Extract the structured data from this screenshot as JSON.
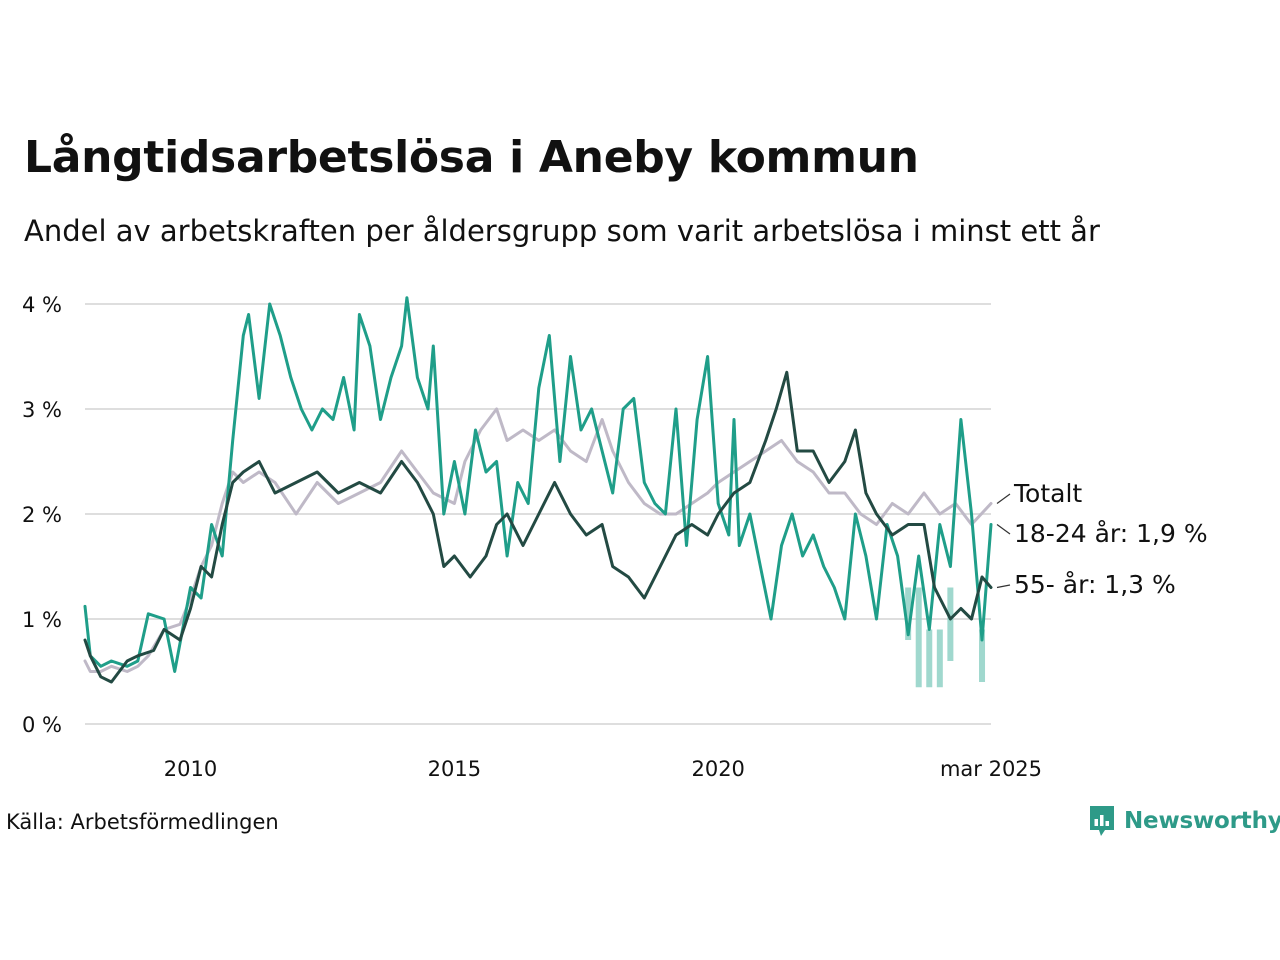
{
  "title": "Långtidsarbetslösa i Aneby kommun",
  "subtitle": "Andel av arbetskraften per åldersgrupp som varit arbetslösa i minst ett år",
  "source": "Källa: Arbetsförmedlingen",
  "brand": "Newsworthy",
  "colors": {
    "total": "#bfb9c7",
    "age_18_24": "#1f9e89",
    "age_55": "#234a43",
    "band": "#8fd1c5",
    "grid": "#dedede",
    "brand": "#2e9a88"
  },
  "chart_data": {
    "type": "line",
    "x_ticks": [
      {
        "x": 2010,
        "label": "2010"
      },
      {
        "x": 2015,
        "label": "2015"
      },
      {
        "x": 2020,
        "label": "2020"
      },
      {
        "x": 2025.17,
        "label": "mar 2025"
      }
    ],
    "y_ticks": [
      {
        "y": 0,
        "label": "0 %"
      },
      {
        "y": 1,
        "label": "1 %"
      },
      {
        "y": 2,
        "label": "2 %"
      },
      {
        "y": 3,
        "label": "3 %"
      },
      {
        "y": 4,
        "label": "4 %"
      }
    ],
    "xlim": [
      2008.0,
      2025.17
    ],
    "ylim": [
      0,
      4
    ],
    "grid": true,
    "xlabel": "",
    "ylabel": "",
    "series": [
      {
        "key": "total",
        "end_label": "Totalt",
        "points": [
          [
            2008.0,
            0.6
          ],
          [
            2008.1,
            0.5
          ],
          [
            2008.3,
            0.5
          ],
          [
            2008.5,
            0.55
          ],
          [
            2008.8,
            0.5
          ],
          [
            2009.0,
            0.55
          ],
          [
            2009.2,
            0.65
          ],
          [
            2009.5,
            0.9
          ],
          [
            2009.8,
            0.95
          ],
          [
            2010.0,
            1.2
          ],
          [
            2010.2,
            1.5
          ],
          [
            2010.4,
            1.7
          ],
          [
            2010.6,
            2.1
          ],
          [
            2010.8,
            2.4
          ],
          [
            2011.0,
            2.3
          ],
          [
            2011.3,
            2.4
          ],
          [
            2011.6,
            2.3
          ],
          [
            2012.0,
            2.0
          ],
          [
            2012.4,
            2.3
          ],
          [
            2012.8,
            2.1
          ],
          [
            2013.2,
            2.2
          ],
          [
            2013.6,
            2.3
          ],
          [
            2014.0,
            2.6
          ],
          [
            2014.3,
            2.4
          ],
          [
            2014.6,
            2.2
          ],
          [
            2015.0,
            2.1
          ],
          [
            2015.2,
            2.5
          ],
          [
            2015.5,
            2.8
          ],
          [
            2015.8,
            3.0
          ],
          [
            2016.0,
            2.7
          ],
          [
            2016.3,
            2.8
          ],
          [
            2016.6,
            2.7
          ],
          [
            2016.9,
            2.8
          ],
          [
            2017.2,
            2.6
          ],
          [
            2017.5,
            2.5
          ],
          [
            2017.8,
            2.9
          ],
          [
            2018.0,
            2.6
          ],
          [
            2018.3,
            2.3
          ],
          [
            2018.6,
            2.1
          ],
          [
            2018.9,
            2.0
          ],
          [
            2019.2,
            2.0
          ],
          [
            2019.5,
            2.1
          ],
          [
            2019.8,
            2.2
          ],
          [
            2020.0,
            2.3
          ],
          [
            2020.3,
            2.4
          ],
          [
            2020.6,
            2.5
          ],
          [
            2020.9,
            2.6
          ],
          [
            2021.2,
            2.7
          ],
          [
            2021.5,
            2.5
          ],
          [
            2021.8,
            2.4
          ],
          [
            2022.1,
            2.2
          ],
          [
            2022.4,
            2.2
          ],
          [
            2022.7,
            2.0
          ],
          [
            2023.0,
            1.9
          ],
          [
            2023.3,
            2.1
          ],
          [
            2023.6,
            2.0
          ],
          [
            2023.9,
            2.2
          ],
          [
            2024.2,
            2.0
          ],
          [
            2024.5,
            2.1
          ],
          [
            2024.8,
            1.9
          ],
          [
            2025.17,
            2.1
          ]
        ]
      },
      {
        "key": "age_18_24",
        "end_label": "18-24 år: 1,9 %",
        "points": [
          [
            2008.0,
            1.12
          ],
          [
            2008.1,
            0.65
          ],
          [
            2008.3,
            0.55
          ],
          [
            2008.5,
            0.6
          ],
          [
            2008.8,
            0.55
          ],
          [
            2009.0,
            0.6
          ],
          [
            2009.2,
            1.05
          ],
          [
            2009.5,
            1.0
          ],
          [
            2009.7,
            0.5
          ],
          [
            2010.0,
            1.3
          ],
          [
            2010.2,
            1.2
          ],
          [
            2010.4,
            1.9
          ],
          [
            2010.6,
            1.6
          ],
          [
            2010.8,
            2.7
          ],
          [
            2011.0,
            3.7
          ],
          [
            2011.1,
            3.9
          ],
          [
            2011.3,
            3.1
          ],
          [
            2011.5,
            4.0
          ],
          [
            2011.7,
            3.7
          ],
          [
            2011.9,
            3.3
          ],
          [
            2012.1,
            3.0
          ],
          [
            2012.3,
            2.8
          ],
          [
            2012.5,
            3.0
          ],
          [
            2012.7,
            2.9
          ],
          [
            2012.9,
            3.3
          ],
          [
            2013.1,
            2.8
          ],
          [
            2013.2,
            3.9
          ],
          [
            2013.4,
            3.6
          ],
          [
            2013.6,
            2.9
          ],
          [
            2013.8,
            3.3
          ],
          [
            2014.0,
            3.6
          ],
          [
            2014.1,
            4.06
          ],
          [
            2014.3,
            3.3
          ],
          [
            2014.5,
            3.0
          ],
          [
            2014.6,
            3.6
          ],
          [
            2014.8,
            2.0
          ],
          [
            2015.0,
            2.5
          ],
          [
            2015.2,
            2.0
          ],
          [
            2015.4,
            2.8
          ],
          [
            2015.6,
            2.4
          ],
          [
            2015.8,
            2.5
          ],
          [
            2016.0,
            1.6
          ],
          [
            2016.2,
            2.3
          ],
          [
            2016.4,
            2.1
          ],
          [
            2016.6,
            3.2
          ],
          [
            2016.8,
            3.7
          ],
          [
            2017.0,
            2.5
          ],
          [
            2017.2,
            3.5
          ],
          [
            2017.4,
            2.8
          ],
          [
            2017.6,
            3.0
          ],
          [
            2017.8,
            2.6
          ],
          [
            2018.0,
            2.2
          ],
          [
            2018.2,
            3.0
          ],
          [
            2018.4,
            3.1
          ],
          [
            2018.6,
            2.3
          ],
          [
            2018.8,
            2.1
          ],
          [
            2019.0,
            2.0
          ],
          [
            2019.2,
            3.0
          ],
          [
            2019.4,
            1.7
          ],
          [
            2019.6,
            2.9
          ],
          [
            2019.8,
            3.5
          ],
          [
            2020.0,
            2.1
          ],
          [
            2020.2,
            1.8
          ],
          [
            2020.3,
            2.9
          ],
          [
            2020.4,
            1.7
          ],
          [
            2020.6,
            2.0
          ],
          [
            2020.8,
            1.5
          ],
          [
            2021.0,
            1.0
          ],
          [
            2021.2,
            1.7
          ],
          [
            2021.4,
            2.0
          ],
          [
            2021.6,
            1.6
          ],
          [
            2021.8,
            1.8
          ],
          [
            2022.0,
            1.5
          ],
          [
            2022.2,
            1.3
          ],
          [
            2022.4,
            1.0
          ],
          [
            2022.6,
            2.0
          ],
          [
            2022.8,
            1.6
          ],
          [
            2023.0,
            1.0
          ],
          [
            2023.2,
            1.9
          ],
          [
            2023.4,
            1.6
          ],
          [
            2023.6,
            0.85
          ],
          [
            2023.8,
            1.6
          ],
          [
            2024.0,
            0.9
          ],
          [
            2024.2,
            1.9
          ],
          [
            2024.4,
            1.5
          ],
          [
            2024.6,
            2.9
          ],
          [
            2024.8,
            2.0
          ],
          [
            2025.0,
            0.8
          ],
          [
            2025.17,
            1.9
          ]
        ]
      },
      {
        "key": "age_55",
        "end_label": "55- år: 1,3 %",
        "points": [
          [
            2008.0,
            0.8
          ],
          [
            2008.1,
            0.65
          ],
          [
            2008.3,
            0.45
          ],
          [
            2008.5,
            0.4
          ],
          [
            2008.8,
            0.6
          ],
          [
            2009.0,
            0.65
          ],
          [
            2009.3,
            0.7
          ],
          [
            2009.5,
            0.9
          ],
          [
            2009.8,
            0.8
          ],
          [
            2010.0,
            1.1
          ],
          [
            2010.2,
            1.5
          ],
          [
            2010.4,
            1.4
          ],
          [
            2010.6,
            1.9
          ],
          [
            2010.8,
            2.3
          ],
          [
            2011.0,
            2.4
          ],
          [
            2011.3,
            2.5
          ],
          [
            2011.6,
            2.2
          ],
          [
            2012.0,
            2.3
          ],
          [
            2012.4,
            2.4
          ],
          [
            2012.8,
            2.2
          ],
          [
            2013.2,
            2.3
          ],
          [
            2013.6,
            2.2
          ],
          [
            2014.0,
            2.5
          ],
          [
            2014.3,
            2.3
          ],
          [
            2014.6,
            2.0
          ],
          [
            2014.8,
            1.5
          ],
          [
            2015.0,
            1.6
          ],
          [
            2015.3,
            1.4
          ],
          [
            2015.6,
            1.6
          ],
          [
            2015.8,
            1.9
          ],
          [
            2016.0,
            2.0
          ],
          [
            2016.3,
            1.7
          ],
          [
            2016.6,
            2.0
          ],
          [
            2016.9,
            2.3
          ],
          [
            2017.2,
            2.0
          ],
          [
            2017.5,
            1.8
          ],
          [
            2017.8,
            1.9
          ],
          [
            2018.0,
            1.5
          ],
          [
            2018.3,
            1.4
          ],
          [
            2018.6,
            1.2
          ],
          [
            2018.9,
            1.5
          ],
          [
            2019.2,
            1.8
          ],
          [
            2019.5,
            1.9
          ],
          [
            2019.8,
            1.8
          ],
          [
            2020.0,
            2.0
          ],
          [
            2020.3,
            2.2
          ],
          [
            2020.6,
            2.3
          ],
          [
            2020.9,
            2.7
          ],
          [
            2021.1,
            3.0
          ],
          [
            2021.3,
            3.35
          ],
          [
            2021.5,
            2.6
          ],
          [
            2021.8,
            2.6
          ],
          [
            2022.1,
            2.3
          ],
          [
            2022.4,
            2.5
          ],
          [
            2022.6,
            2.8
          ],
          [
            2022.8,
            2.2
          ],
          [
            2023.0,
            2.0
          ],
          [
            2023.3,
            1.8
          ],
          [
            2023.6,
            1.9
          ],
          [
            2023.9,
            1.9
          ],
          [
            2024.1,
            1.3
          ],
          [
            2024.4,
            1.0
          ],
          [
            2024.6,
            1.1
          ],
          [
            2024.8,
            1.0
          ],
          [
            2025.0,
            1.4
          ],
          [
            2025.17,
            1.3
          ]
        ]
      }
    ],
    "uncertainty_band": {
      "series": "age_18_24",
      "points": [
        [
          2023.6,
          0.8,
          1.3
        ],
        [
          2023.8,
          0.35,
          1.3
        ],
        [
          2024.0,
          0.35,
          0.9
        ],
        [
          2024.2,
          0.35,
          0.9
        ],
        [
          2024.4,
          0.6,
          1.3
        ],
        [
          2025.0,
          0.4,
          0.9
        ]
      ]
    }
  }
}
